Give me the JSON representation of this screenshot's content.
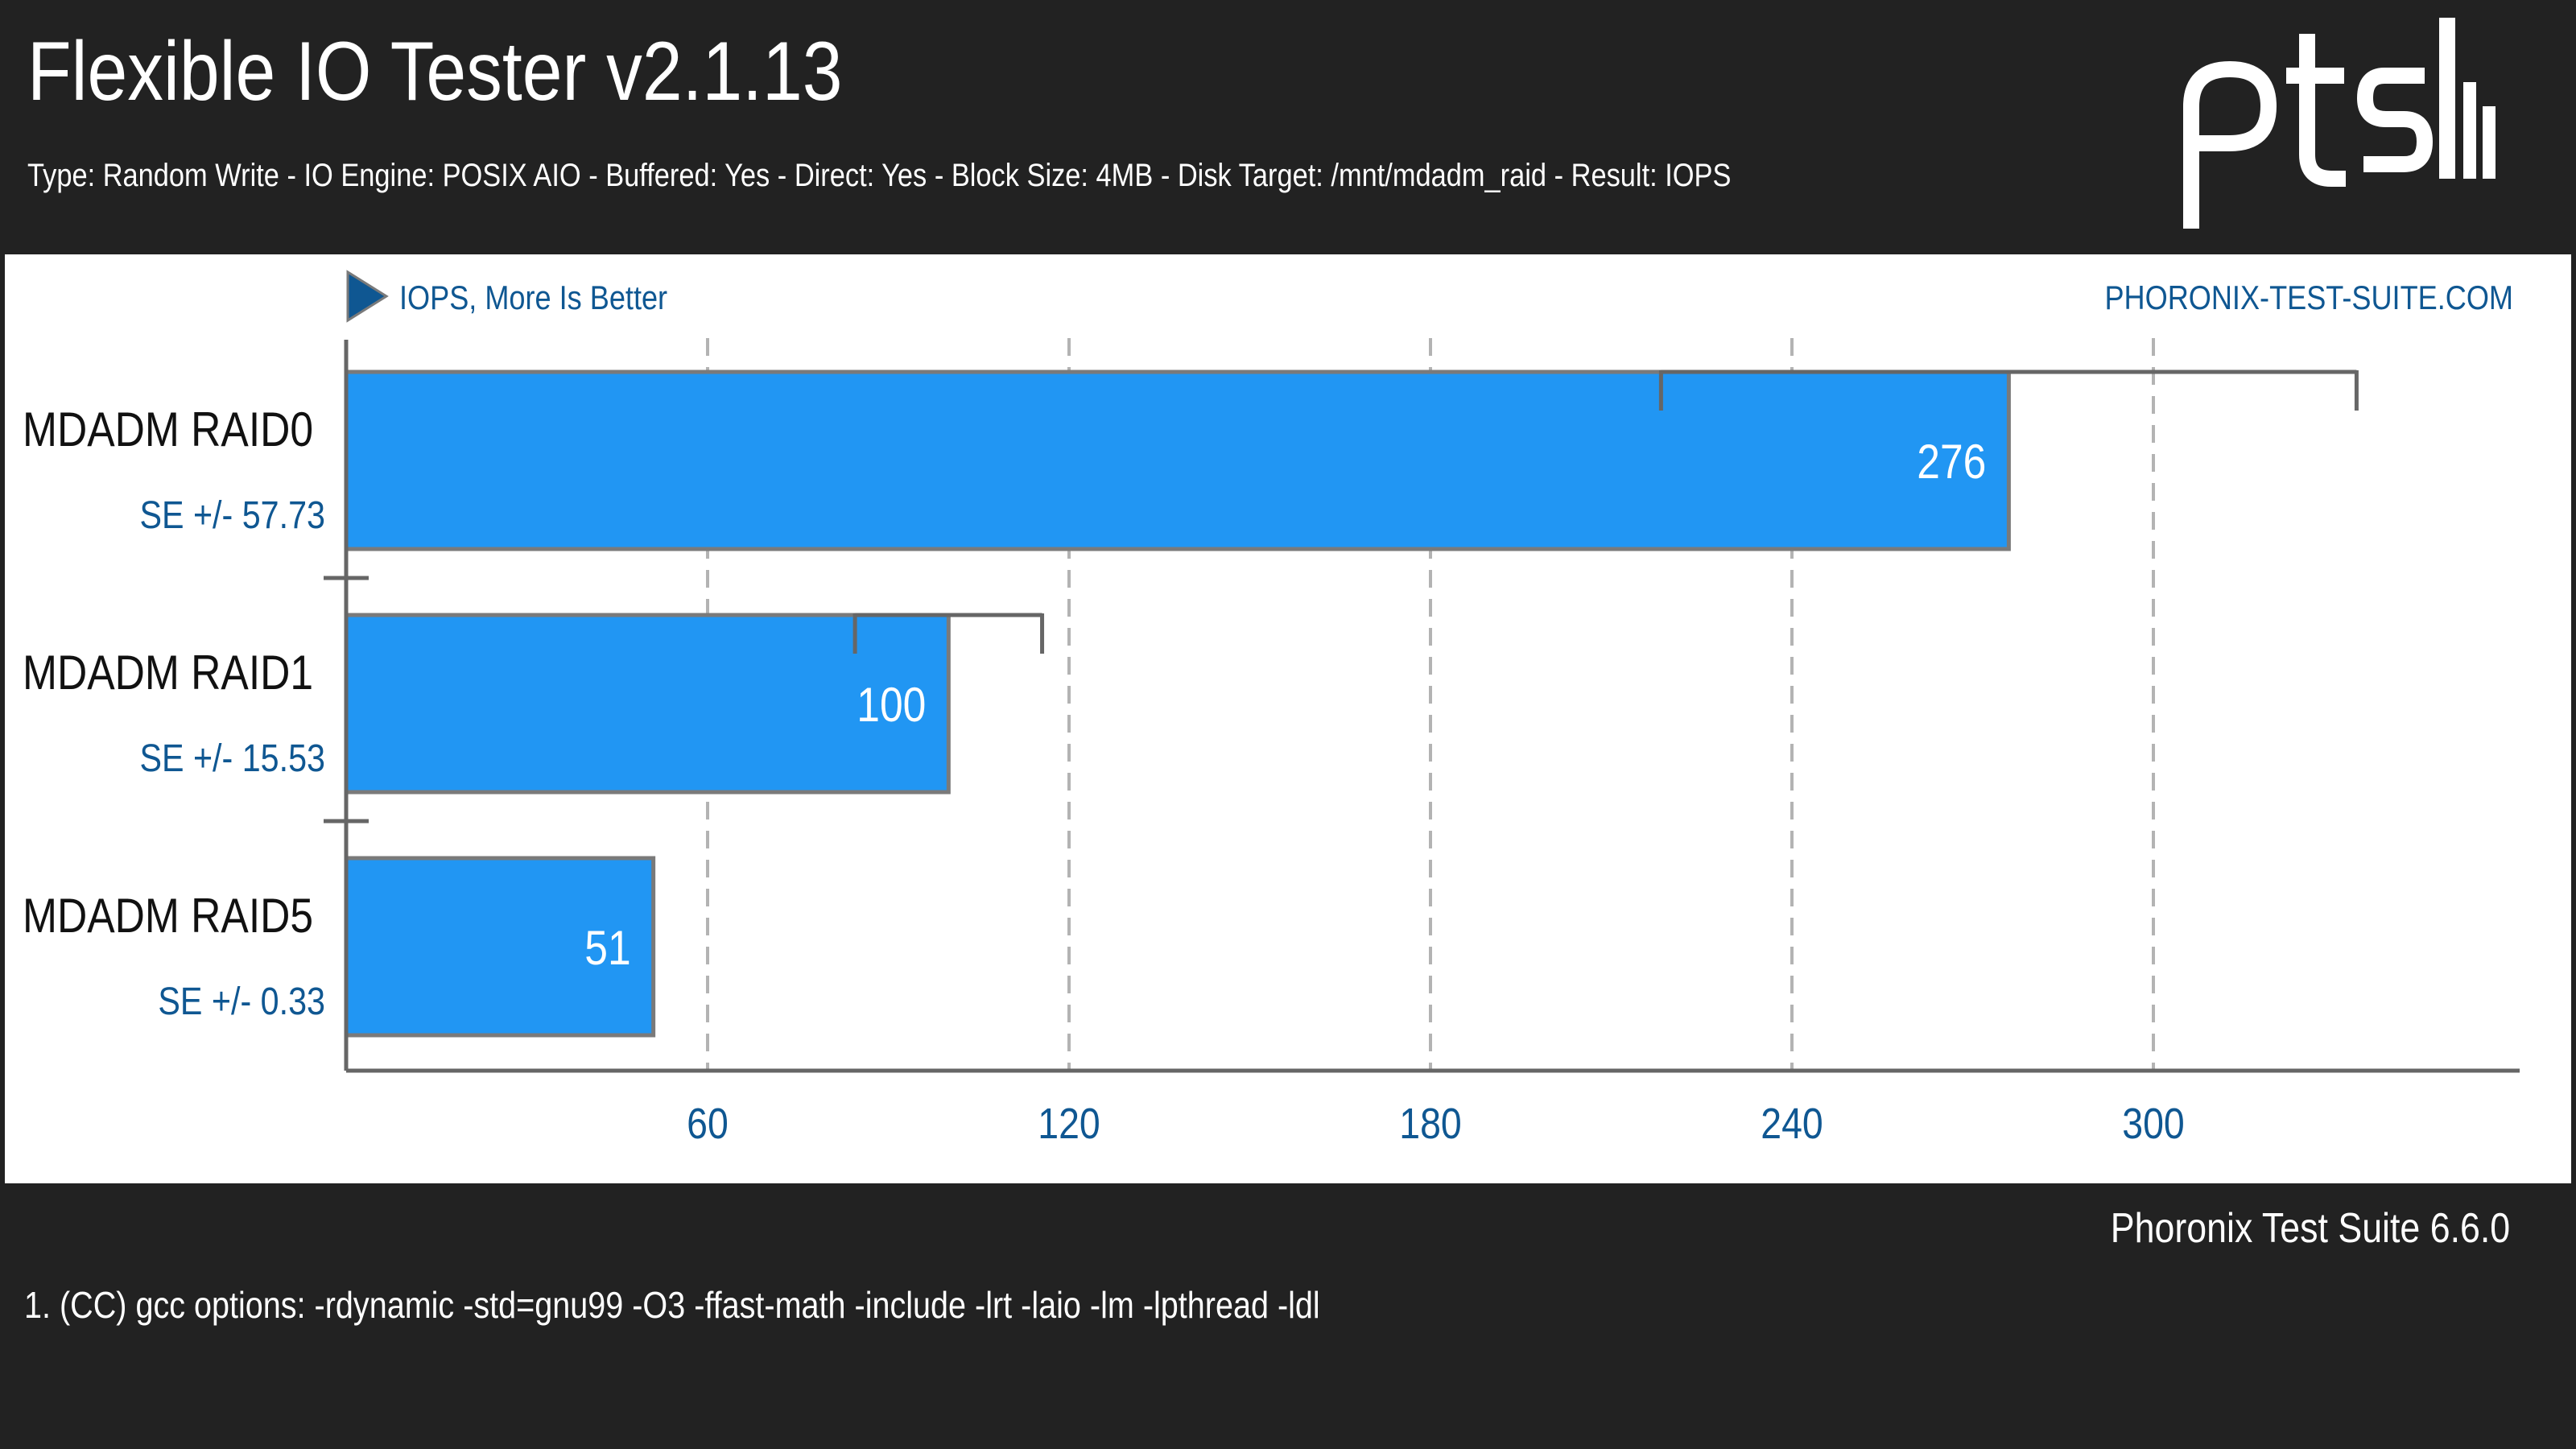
{
  "header": {
    "title": "Flexible IO Tester v2.1.13",
    "subtitle": "Type: Random Write - IO Engine: POSIX AIO - Buffered: Yes - Direct: Yes - Block Size: 4MB - Disk Target: /mnt/mdadm_raid - Result: IOPS",
    "logo_icon": "pts-logo-icon"
  },
  "footer": {
    "version": "Phoronix Test Suite 6.6.0",
    "footnote": "1. (CC) gcc options: -rdynamic -std=gnu99 -O3 -ffast-math -include -lrt -laio -lm -lpthread -ldl"
  },
  "colors": {
    "background": "#222222",
    "bar": "#2196f3",
    "bar_border": "#7a7a7a",
    "accent_text": "#0f5792",
    "grid": "#b3b3b3"
  },
  "chart_data": {
    "type": "bar",
    "orientation": "horizontal",
    "title": "Flexible IO Tester v2.1.13",
    "subtitle": "Type: Random Write - IO Engine: POSIX AIO - Buffered: Yes - Direct: Yes - Block Size: 4MB - Disk Target: /mnt/mdadm_raid - Result: IOPS",
    "metric_label": "IOPS, More Is Better",
    "watermark": "PHORONIX-TEST-SUITE.COM",
    "categories": [
      "MDADM RAID0",
      "MDADM RAID1",
      "MDADM RAID5"
    ],
    "values": [
      276,
      100,
      51
    ],
    "error_labels": [
      "SE +/- 57.73",
      "SE +/- 15.53",
      "SE +/- 0.33"
    ],
    "errors": [
      57.73,
      15.53,
      0.33
    ],
    "xlim": [
      0,
      360
    ],
    "xticks": [
      60,
      120,
      180,
      240,
      300
    ],
    "grid": true
  }
}
